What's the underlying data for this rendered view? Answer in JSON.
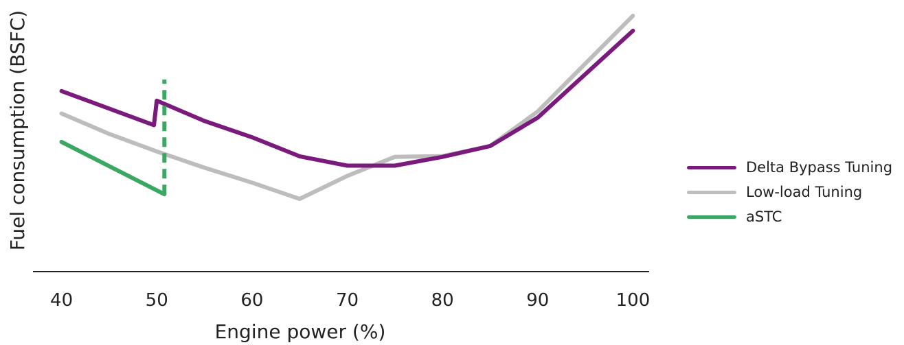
{
  "chart_data": {
    "type": "line",
    "xlabel": "Engine power (%)",
    "ylabel": "Fuel consumption (BSFC)",
    "xlim": [
      37,
      101.7
    ],
    "ylim": [
      0,
      100
    ],
    "xticks": [
      "40",
      "50",
      "60",
      "70",
      "80",
      "90",
      "100"
    ],
    "grid": false,
    "legend_position": "right",
    "series": [
      {
        "name": "Delta Bypass Tuning",
        "color": "#7b1a7d",
        "points": [
          [
            40,
            70
          ],
          [
            49.7,
            56.8
          ],
          [
            50,
            66.3
          ],
          [
            55,
            58.4
          ],
          [
            60,
            52.1
          ],
          [
            65,
            44.7
          ],
          [
            70,
            41.1
          ],
          [
            75,
            41.1
          ],
          [
            80,
            44.5
          ],
          [
            85,
            48.7
          ],
          [
            90,
            59.7
          ],
          [
            100,
            93.4
          ]
        ]
      },
      {
        "name": "Low-load Tuning",
        "color": "#bdbdbd",
        "points": [
          [
            40,
            61.3
          ],
          [
            45,
            53.4
          ],
          [
            50,
            46.6
          ],
          [
            55,
            40.3
          ],
          [
            60,
            34.5
          ],
          [
            65,
            28.2
          ],
          [
            70,
            37.1
          ],
          [
            75,
            44.5
          ],
          [
            80,
            44.8
          ],
          [
            85,
            48.7
          ],
          [
            90,
            62.1
          ],
          [
            100,
            99.2
          ]
        ]
      },
      {
        "name": "aSTC",
        "color": "#3aa862",
        "points": [
          [
            40,
            50.3
          ],
          [
            50.8,
            30.0
          ]
        ]
      }
    ],
    "annotations": [
      {
        "type": "vertical-dashed-line",
        "x": 50.8,
        "y_from": 30.0,
        "y_to": 74.5,
        "color": "#3aa862"
      }
    ]
  }
}
